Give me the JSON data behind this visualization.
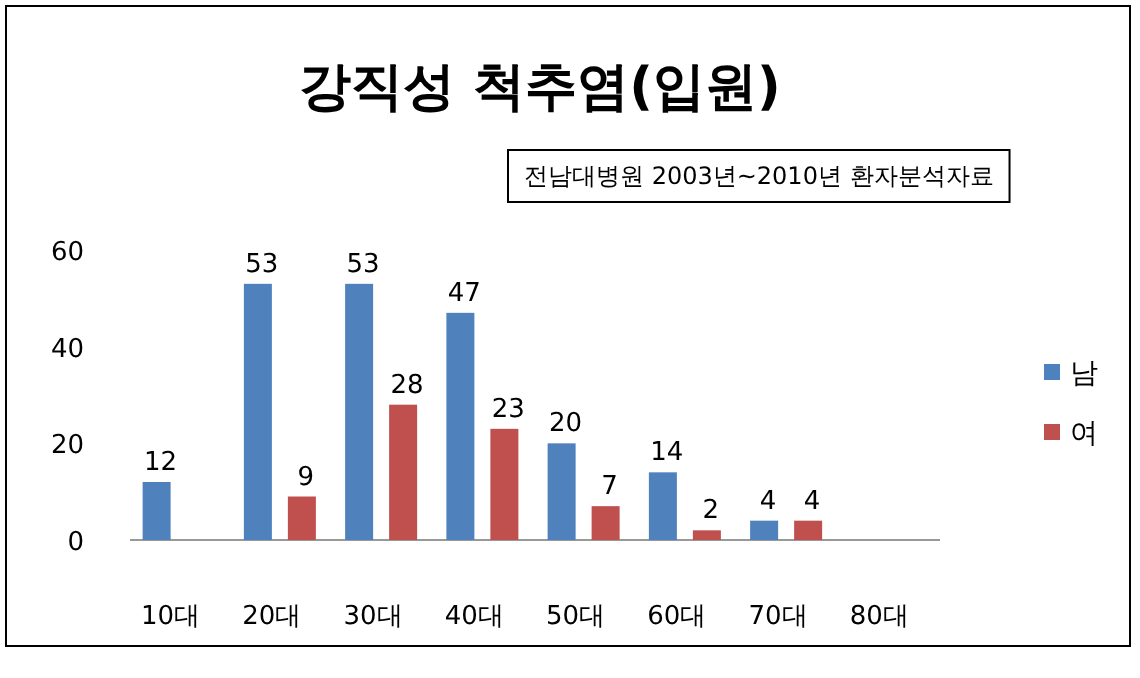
{
  "chart_data": {
    "type": "bar",
    "title": "강직성 척추염(입원)",
    "annotations": [
      "전남대병원 2003년~2010년  환자분석자료"
    ],
    "categories": [
      "10대",
      "20대",
      "30대",
      "40대",
      "50대",
      "60대",
      "70대",
      "80대"
    ],
    "series": [
      {
        "name": "남",
        "color": "#4f81bd",
        "values": [
          12,
          53,
          53,
          47,
          20,
          14,
          4,
          null
        ]
      },
      {
        "name": "여",
        "color": "#c0504d",
        "values": [
          null,
          9,
          28,
          23,
          7,
          2,
          4,
          null
        ]
      }
    ],
    "ylim": [
      0,
      60
    ],
    "yticks": [
      0,
      20,
      40,
      60
    ],
    "grid": false,
    "legend": "right",
    "data_labels": true
  }
}
